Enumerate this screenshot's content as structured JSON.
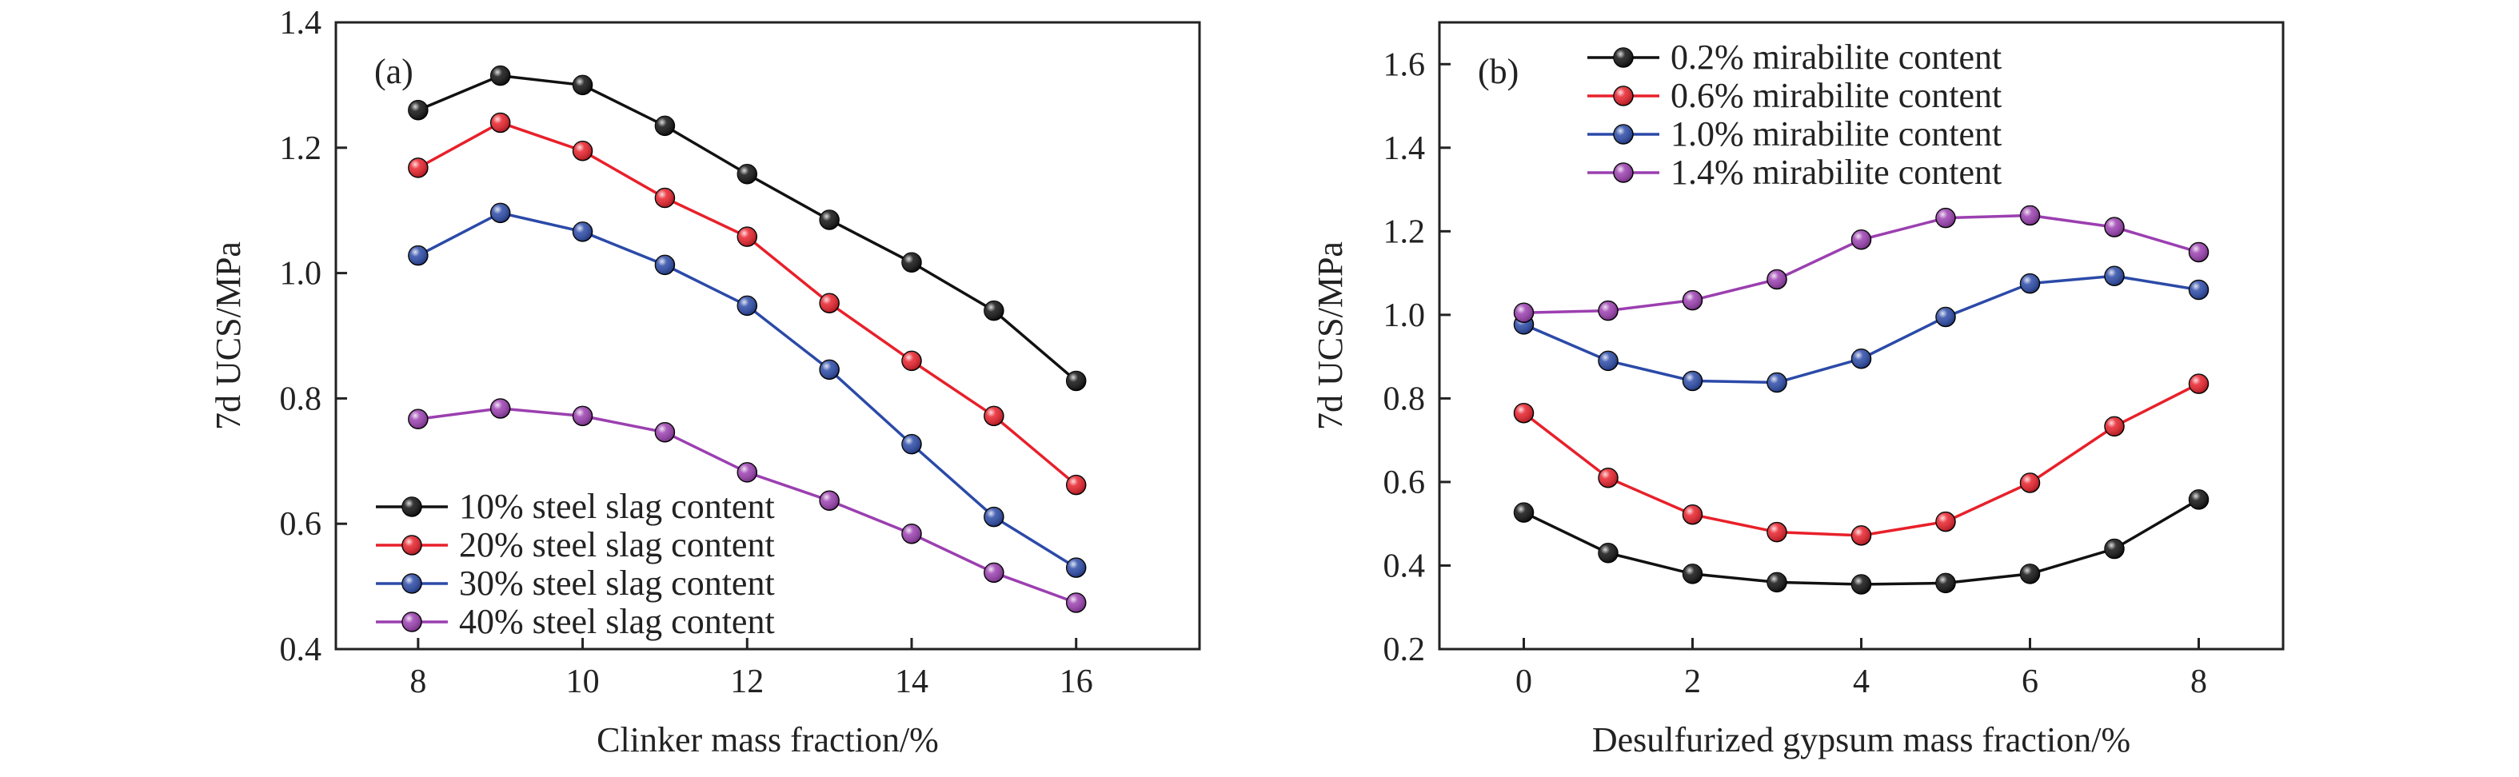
{
  "chart_data": [
    {
      "type": "line",
      "panel_label": "(a)",
      "xlabel": "Clinker mass fraction/%",
      "ylabel": "7d UCS/MPa",
      "xlim": [
        7,
        17.5
      ],
      "ylim": [
        0.4,
        1.4
      ],
      "xticks": [
        8,
        10,
        12,
        14,
        16
      ],
      "yticks": [
        0.4,
        0.6,
        0.8,
        1.0,
        1.2,
        1.4
      ],
      "xtick_labels": [
        "8",
        "10",
        "12",
        "14",
        "16"
      ],
      "ytick_labels": [
        "0.4",
        "0.6",
        "0.8",
        "1.0",
        "1.2",
        "1.4"
      ],
      "legend_position": "bottom-left",
      "x": [
        8,
        9,
        10,
        11,
        12,
        13,
        14,
        15,
        16
      ],
      "series": [
        {
          "name": "10% steel slag content",
          "color": "#111111",
          "values": [
            1.26,
            1.315,
            1.3,
            1.235,
            1.158,
            1.085,
            1.017,
            0.94,
            0.828
          ]
        },
        {
          "name": "20% steel slag content",
          "color": "#e8202a",
          "values": [
            1.168,
            1.24,
            1.195,
            1.12,
            1.058,
            0.952,
            0.86,
            0.772,
            0.662
          ]
        },
        {
          "name": "30% steel slag content",
          "color": "#2b4aa8",
          "values": [
            1.028,
            1.096,
            1.066,
            1.013,
            0.948,
            0.846,
            0.727,
            0.611,
            0.53
          ]
        },
        {
          "name": "40% steel slag content",
          "color": "#9b3fb0",
          "values": [
            0.767,
            0.784,
            0.772,
            0.746,
            0.682,
            0.637,
            0.584,
            0.522,
            0.474
          ]
        }
      ]
    },
    {
      "type": "line",
      "panel_label": "(b)",
      "xlabel": "Desulfurized gypsum mass fraction/%",
      "ylabel": "7d UCS/MPa",
      "xlim": [
        -1,
        9
      ],
      "ylim": [
        0.2,
        1.7
      ],
      "xticks": [
        0,
        2,
        4,
        6,
        8
      ],
      "yticks": [
        0.2,
        0.4,
        0.6,
        0.8,
        1.0,
        1.2,
        1.4,
        1.6
      ],
      "xtick_labels": [
        "0",
        "2",
        "4",
        "6",
        "8"
      ],
      "ytick_labels": [
        "0.2",
        "0.4",
        "0.6",
        "0.8",
        "1.0",
        "1.2",
        "1.4",
        "1.6"
      ],
      "legend_position": "top",
      "x": [
        0,
        1,
        2,
        3,
        4,
        5,
        6,
        7,
        8
      ],
      "series": [
        {
          "name": "0.2% mirabilite content",
          "color": "#111111",
          "values": [
            0.527,
            0.43,
            0.38,
            0.36,
            0.355,
            0.358,
            0.38,
            0.44,
            0.558
          ]
        },
        {
          "name": "0.6% mirabilite content",
          "color": "#e8202a",
          "values": [
            0.765,
            0.61,
            0.522,
            0.48,
            0.472,
            0.505,
            0.598,
            0.733,
            0.835
          ]
        },
        {
          "name": "1.0% mirabilite content",
          "color": "#2b4aa8",
          "values": [
            0.977,
            0.89,
            0.842,
            0.838,
            0.895,
            0.995,
            1.075,
            1.093,
            1.06
          ]
        },
        {
          "name": "1.4% mirabilite content",
          "color": "#9b3fb0",
          "values": [
            1.005,
            1.01,
            1.035,
            1.085,
            1.18,
            1.232,
            1.238,
            1.21,
            1.15
          ]
        }
      ]
    }
  ]
}
